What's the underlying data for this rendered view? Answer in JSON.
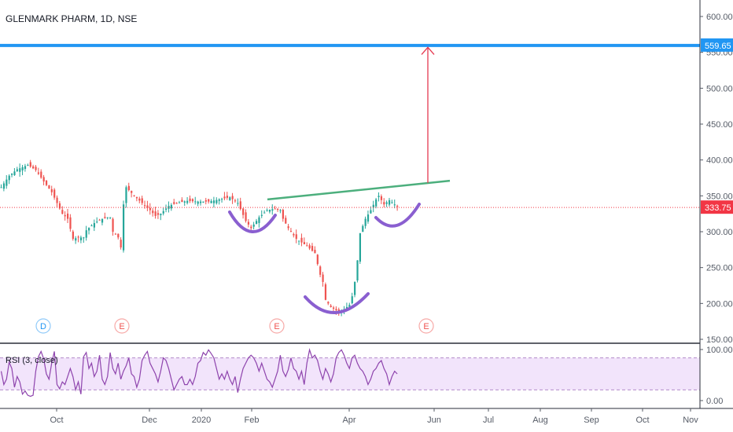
{
  "header": {
    "title": "GLENMARK PHARM, 1D, NSE"
  },
  "colors": {
    "up": "#26a69a",
    "down": "#ef5350",
    "target_line": "#2196f3",
    "neckline": "#4caf7d",
    "arrow": "#e53950",
    "arcs": "#8a5fd0",
    "price_line": "#f23645",
    "rsi_line": "#8e44ad",
    "rsi_band": "#f2e4fb"
  },
  "chart_data": {
    "type": "candlestick",
    "price_axis": {
      "ticks": [
        "600.00",
        "550.00",
        "500.00",
        "450.00",
        "400.00",
        "350.00",
        "300.00",
        "250.00",
        "200.00",
        "150.00"
      ],
      "ylim": [
        118,
        622
      ]
    },
    "time_axis": {
      "ticks": [
        "Oct",
        "Dec",
        "2020",
        "Feb",
        "Apr",
        "Jun",
        "Jul",
        "Aug",
        "Sep",
        "Oct",
        "Nov"
      ]
    },
    "target_price": "559.65",
    "last_price": "333.75",
    "rsi": {
      "title": "RSI (3, close)",
      "ticks": [
        "100.00",
        "0.00"
      ],
      "upper_band": 80,
      "lower_band": 20
    },
    "events": [
      {
        "label": "D",
        "type": "dividend"
      },
      {
        "label": "E",
        "type": "earnings"
      },
      {
        "label": "E",
        "type": "earnings"
      },
      {
        "label": "E",
        "type": "earnings"
      }
    ],
    "price_path": [
      [
        0,
        362
      ],
      [
        3,
        378
      ],
      [
        6,
        387
      ],
      [
        10,
        393
      ],
      [
        13,
        386
      ],
      [
        16,
        370
      ],
      [
        19,
        355
      ],
      [
        21,
        340
      ],
      [
        23,
        325
      ],
      [
        25,
        318
      ],
      [
        27,
        290
      ],
      [
        29,
        292
      ],
      [
        31,
        292
      ],
      [
        32,
        302
      ],
      [
        35,
        312
      ],
      [
        38,
        318
      ],
      [
        40,
        320
      ],
      [
        41,
        320
      ],
      [
        42,
        300
      ],
      [
        44,
        292
      ],
      [
        45,
        278
      ],
      [
        46,
        338
      ],
      [
        47,
        362
      ],
      [
        50,
        350
      ],
      [
        53,
        340
      ],
      [
        56,
        330
      ],
      [
        58,
        322
      ],
      [
        60,
        325
      ],
      [
        63,
        336
      ],
      [
        66,
        340
      ],
      [
        70,
        343
      ],
      [
        74,
        342
      ],
      [
        78,
        342
      ],
      [
        82,
        345
      ],
      [
        86,
        348
      ],
      [
        89,
        340
      ],
      [
        92,
        315
      ],
      [
        94,
        305
      ],
      [
        97,
        320
      ],
      [
        100,
        330
      ],
      [
        103,
        332
      ],
      [
        105,
        330
      ],
      [
        106,
        318
      ],
      [
        108,
        305
      ],
      [
        111,
        290
      ],
      [
        115,
        280
      ],
      [
        118,
        270
      ],
      [
        120,
        240
      ],
      [
        121,
        230
      ],
      [
        122,
        205
      ],
      [
        124,
        195
      ],
      [
        127,
        188
      ],
      [
        129,
        192
      ],
      [
        131,
        198
      ],
      [
        132,
        210
      ],
      [
        133,
        230
      ],
      [
        134,
        260
      ],
      [
        135,
        298
      ],
      [
        137,
        318
      ],
      [
        139,
        330
      ],
      [
        141,
        345
      ],
      [
        142,
        350
      ],
      [
        144,
        338
      ],
      [
        146,
        344
      ],
      [
        148,
        338
      ],
      [
        150,
        333.75
      ]
    ],
    "rsi_values": [
      55,
      30,
      40,
      72,
      60,
      25,
      45,
      35,
      12,
      18,
      10,
      8,
      10,
      55,
      82,
      92,
      78,
      50,
      40,
      70,
      92,
      30,
      22,
      35,
      30,
      45,
      60,
      45,
      20,
      35,
      12,
      82,
      90,
      60,
      70,
      45,
      55,
      85,
      40,
      30,
      45,
      90,
      60,
      50,
      70,
      40,
      55,
      65,
      80,
      50,
      45,
      25,
      40,
      75,
      85,
      92,
      70,
      60,
      50,
      35,
      55,
      80,
      75,
      60,
      40,
      20,
      30,
      40,
      45,
      30,
      30,
      40,
      30,
      45,
      70,
      75,
      90,
      85,
      95,
      88,
      80,
      60,
      40,
      50,
      40,
      55,
      40,
      30,
      45,
      15,
      40,
      60,
      70,
      80,
      85,
      80,
      70,
      55,
      70,
      55,
      40,
      35,
      25,
      40,
      55,
      85,
      55,
      45,
      58,
      80,
      60,
      55,
      40,
      55,
      30,
      70,
      95,
      80,
      85,
      75,
      55,
      40,
      60,
      50,
      35,
      50,
      80,
      90,
      95,
      85,
      70,
      60,
      80,
      85,
      70,
      60,
      55,
      45,
      30,
      40,
      55,
      60,
      70,
      75,
      60,
      50,
      30,
      45,
      55,
      50
    ]
  }
}
